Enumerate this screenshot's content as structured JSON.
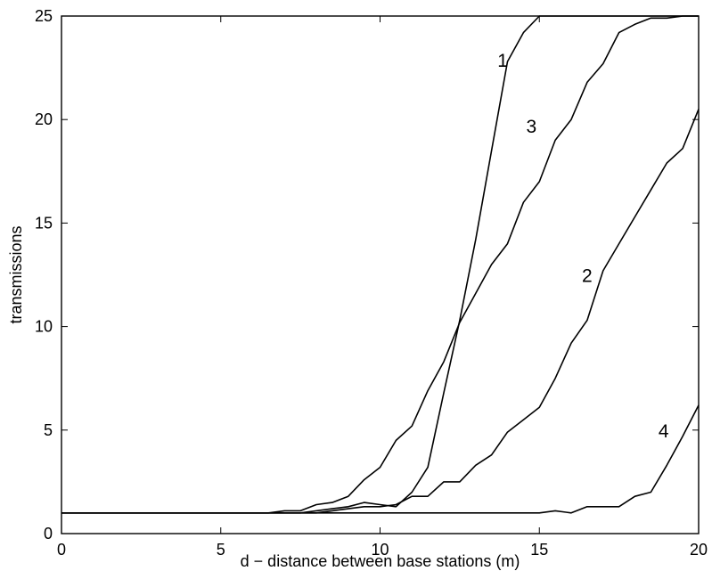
{
  "chart_data": {
    "type": "line",
    "title": "",
    "xlabel": "d − distance between base stations (m)",
    "ylabel": "transmissions",
    "xlim": [
      0,
      20
    ],
    "ylim": [
      0,
      25
    ],
    "xticks": [
      0,
      5,
      10,
      15,
      20
    ],
    "yticks": [
      0,
      5,
      10,
      15,
      20,
      25
    ],
    "grid": false,
    "legend": "none",
    "series": [
      {
        "name": "1",
        "x": [
          0,
          7.5,
          8,
          8.5,
          9,
          9.5,
          10,
          10.5,
          11,
          11.5,
          12,
          12.5,
          13,
          13.5,
          14,
          14.5,
          15,
          20
        ],
        "y": [
          1,
          1,
          1.1,
          1.2,
          1.3,
          1.5,
          1.4,
          1.3,
          2,
          3.2,
          6.8,
          10.3,
          14.2,
          18.5,
          22.8,
          24.2,
          25,
          25
        ]
      },
      {
        "name": "2",
        "x": [
          0,
          8,
          8.5,
          9,
          9.5,
          10,
          10.5,
          11,
          11.5,
          12,
          12.5,
          13,
          13.5,
          14,
          14.5,
          15,
          15.5,
          16,
          16.5,
          17,
          17.5,
          18,
          18.5,
          19,
          19.5,
          20
        ],
        "y": [
          1,
          1,
          1.1,
          1.2,
          1.3,
          1.3,
          1.4,
          1.8,
          1.8,
          2.5,
          2.5,
          3.3,
          3.8,
          4.9,
          5.5,
          6.1,
          7.5,
          9.2,
          10.3,
          12.7,
          14,
          15.3,
          16.6,
          17.9,
          18.6,
          20.5
        ]
      },
      {
        "name": "3",
        "x": [
          0,
          6,
          6.5,
          7,
          7.5,
          8,
          8.5,
          9,
          9.5,
          10,
          10.5,
          11,
          11.5,
          12,
          12.5,
          13,
          13.5,
          14,
          14.5,
          15,
          15.5,
          16,
          16.5,
          17,
          17.5,
          18,
          18.5,
          19,
          19.5,
          20
        ],
        "y": [
          1,
          1,
          1,
          1.1,
          1.1,
          1.4,
          1.5,
          1.8,
          2.6,
          3.2,
          4.5,
          5.2,
          6.9,
          8.3,
          10.2,
          11.6,
          13,
          14,
          16,
          17,
          19,
          20,
          21.8,
          22.7,
          24.2,
          24.6,
          24.9,
          24.9,
          25,
          25
        ]
      },
      {
        "name": "4",
        "x": [
          0,
          15,
          15.5,
          16,
          16.5,
          17,
          17.5,
          18,
          18.5,
          19,
          19.5,
          20
        ],
        "y": [
          1,
          1,
          1.1,
          1,
          1.3,
          1.3,
          1.3,
          1.8,
          2,
          3.3,
          4.7,
          6.2
        ]
      }
    ],
    "annotations": [
      {
        "text": "1",
        "x": 13.85,
        "y": 22.9
      },
      {
        "text": "3",
        "x": 14.75,
        "y": 19.7
      },
      {
        "text": "2",
        "x": 16.5,
        "y": 12.5
      },
      {
        "text": "4",
        "x": 18.9,
        "y": 5.0
      }
    ]
  }
}
